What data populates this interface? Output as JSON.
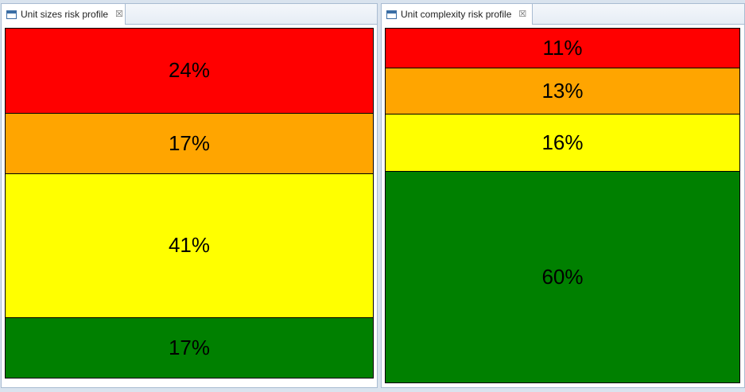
{
  "colors": {
    "very_high": "#ff0000",
    "high": "#ffa500",
    "moderate": "#ffff00",
    "low": "#008000"
  },
  "views": [
    {
      "tab_title": "Unit sizes risk profile",
      "close_glyph": "☒",
      "segments": [
        {
          "label": "24%",
          "value": 24,
          "color": "#ff0000"
        },
        {
          "label": "17%",
          "value": 17,
          "color": "#ffa500"
        },
        {
          "label": "41%",
          "value": 41,
          "color": "#ffff00"
        },
        {
          "label": "17%",
          "value": 17,
          "color": "#008000"
        }
      ]
    },
    {
      "tab_title": "Unit complexity risk profile",
      "close_glyph": "☒",
      "segments": [
        {
          "label": "11%",
          "value": 11,
          "color": "#ff0000"
        },
        {
          "label": "13%",
          "value": 13,
          "color": "#ffa500"
        },
        {
          "label": "16%",
          "value": 16,
          "color": "#ffff00"
        },
        {
          "label": "60%",
          "value": 60,
          "color": "#008000"
        }
      ]
    }
  ]
}
